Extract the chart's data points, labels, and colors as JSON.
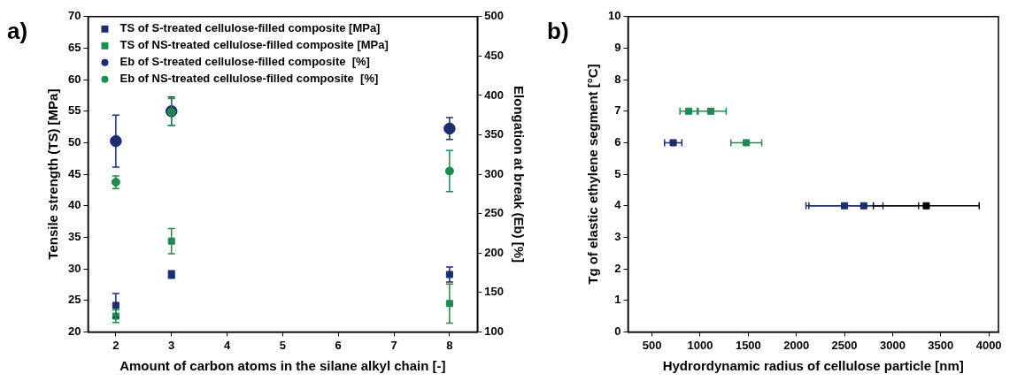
{
  "chart_data": [
    {
      "type": "scatter",
      "title": "a)",
      "xlabel": "Amount of carbon atoms in the silane alkyl chain [-]",
      "ylabel": "Tensile strength (TS) [MPa]",
      "y2label": "Elongation at break (Eb) [%]",
      "xlim": [
        1.5,
        8.5
      ],
      "xticks": [
        2,
        3,
        4,
        5,
        6,
        7,
        8
      ],
      "ylim": [
        20,
        70
      ],
      "yticks": [
        20,
        25,
        30,
        35,
        40,
        45,
        50,
        55,
        60,
        65,
        70
      ],
      "y2lim": [
        100,
        500
      ],
      "y2ticks": [
        100,
        150,
        200,
        250,
        300,
        350,
        400,
        450,
        500
      ],
      "grid": false,
      "legend": "top left",
      "series": [
        {
          "name": "TS of S-treated cellulose-filled composite [MPa]",
          "color": "#1b2f6e",
          "marker": "square",
          "x": [
            2,
            3,
            8
          ],
          "values": [
            24.2,
            29.1,
            29.1
          ],
          "errors": [
            1.9,
            0.6,
            1.2
          ]
        },
        {
          "name": "TS of NS-treated cellulose-filled composite [MPa]",
          "color": "#1f8a52",
          "marker": "square",
          "x": [
            2,
            3,
            8
          ],
          "values": [
            22.5,
            34.4,
            24.5
          ],
          "errors": [
            1.0,
            2.0,
            3.1
          ]
        },
        {
          "name": "Eb of S-treated cellulose-filled composite  [%]",
          "color": "#1b2f6e",
          "marker": "circle",
          "axis": "y2",
          "x": [
            2,
            3,
            8
          ],
          "values": [
            342,
            380,
            358
          ],
          "errors": [
            33,
            18,
            14
          ]
        },
        {
          "name": "Eb of NS-treated cellulose-filled composite  [%]",
          "color": "#1f8a52",
          "marker": "circle",
          "axis": "y2",
          "x": [
            2,
            3,
            8
          ],
          "values": [
            290,
            379,
            304
          ],
          "errors": [
            8,
            17,
            26
          ]
        }
      ]
    },
    {
      "type": "scatter",
      "title": "b)",
      "xlabel": "Hydrordynamic radius of cellulose particle [nm]",
      "ylabel": "Tg of elastic ethylene segment [°C]",
      "xlim": [
        250,
        4100
      ],
      "xticks": [
        500,
        1000,
        1500,
        2000,
        2500,
        3000,
        3500,
        4000
      ],
      "ylim": [
        0,
        10
      ],
      "yticks": [
        0,
        1,
        2,
        3,
        4,
        5,
        6,
        7,
        8,
        9,
        10
      ],
      "grid": false,
      "legend": false,
      "marker": "square",
      "series": [
        {
          "color": "#1b2f6e",
          "x": [
            720,
            2500,
            2700
          ],
          "values": [
            6,
            4,
            4
          ],
          "xerrors": [
            90,
            400,
            570
          ]
        },
        {
          "color": "#1f8a52",
          "x": [
            880,
            1110,
            1480
          ],
          "values": [
            7,
            7,
            6
          ],
          "xerrors": [
            90,
            [
              980,
              1270
            ],
            160
          ]
        },
        {
          "color": "#000000",
          "x": [
            3350
          ],
          "values": [
            4
          ],
          "xerrors": [
            550
          ]
        }
      ]
    }
  ]
}
